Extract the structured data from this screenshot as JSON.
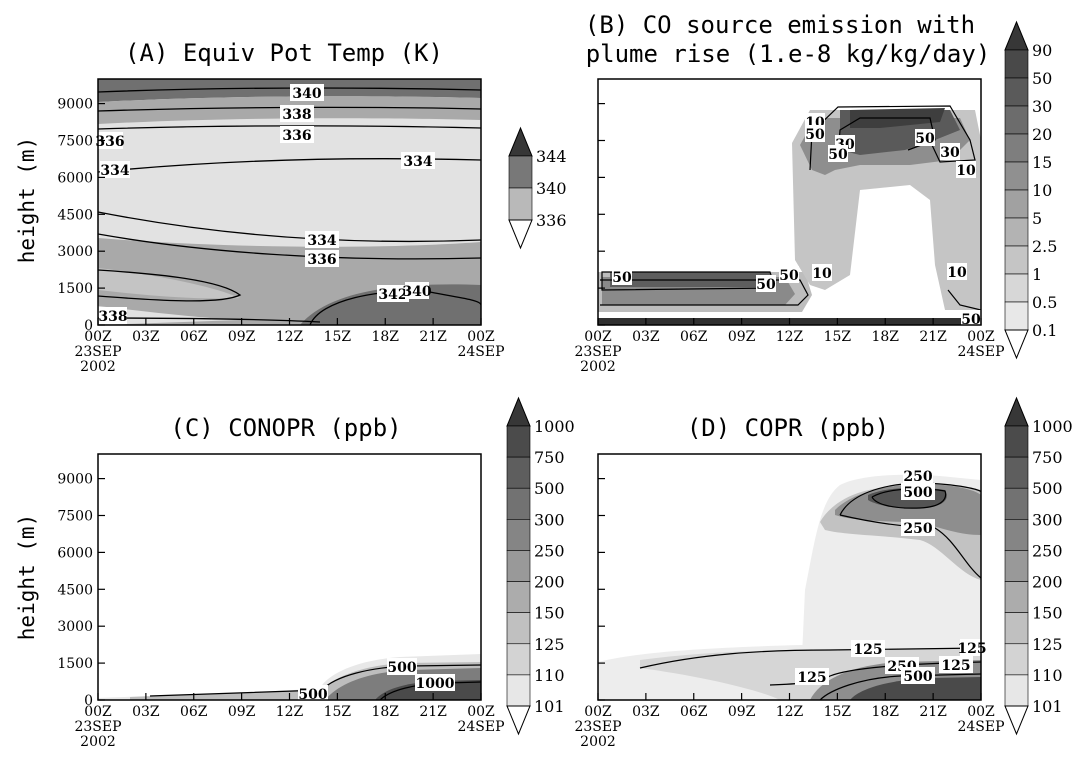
{
  "figure": {
    "common": {
      "ylabel": "height (m)",
      "x_ticks": [
        "00Z",
        "03Z",
        "06Z",
        "09Z",
        "12Z",
        "15Z",
        "18Z",
        "21Z",
        "00Z"
      ],
      "x_date_start": "23SEP",
      "x_year": "2002",
      "x_date_end": "24SEP",
      "y_ticks": [
        "9000",
        "7500",
        "6000",
        "4500",
        "3000",
        "1500",
        "0"
      ]
    }
  },
  "chart_data": [
    {
      "panel": "A",
      "type": "heatmap",
      "title": "(A) Equiv Pot Temp (K)",
      "ylabel": "height (m)",
      "xlim": [
        "00Z 23SEP 2002",
        "00Z 24SEP"
      ],
      "ylim": [
        0,
        10000
      ],
      "colorbar_levels": [
        "344",
        "340",
        "336"
      ],
      "contour_labels": [
        "340",
        "338",
        "336",
        "336",
        "334",
        "334",
        "334",
        "336",
        "342",
        "340",
        "338"
      ]
    },
    {
      "panel": "B",
      "type": "heatmap",
      "title_line1": "(B) CO source emission with",
      "title_line2": "plume rise (1.e-8 kg/kg/day)",
      "ylim": [
        0,
        10000
      ],
      "colorbar_levels": [
        "90",
        "50",
        "30",
        "20",
        "15",
        "10",
        "5",
        "2.5",
        "1",
        "0.5",
        "0.1"
      ],
      "contour_labels": [
        "10",
        "50",
        "30",
        "50",
        "50",
        "30",
        "10",
        "50",
        "50",
        "50",
        "10",
        "10",
        "50"
      ]
    },
    {
      "panel": "C",
      "type": "heatmap",
      "title": "(C) CONOPR (ppb)",
      "ylabel": "height (m)",
      "ylim": [
        0,
        10000
      ],
      "colorbar_levels": [
        "1000",
        "750",
        "500",
        "300",
        "250",
        "200",
        "150",
        "125",
        "110",
        "101"
      ],
      "contour_labels": [
        "500",
        "1000",
        "500"
      ]
    },
    {
      "panel": "D",
      "type": "heatmap",
      "title": "(D) COPR (ppb)",
      "ylim": [
        0,
        10000
      ],
      "colorbar_levels": [
        "1000",
        "750",
        "500",
        "300",
        "250",
        "200",
        "150",
        "125",
        "110",
        "101"
      ],
      "contour_labels": [
        "250",
        "500",
        "250",
        "125",
        "125",
        "125",
        "125",
        "250",
        "500"
      ]
    }
  ]
}
